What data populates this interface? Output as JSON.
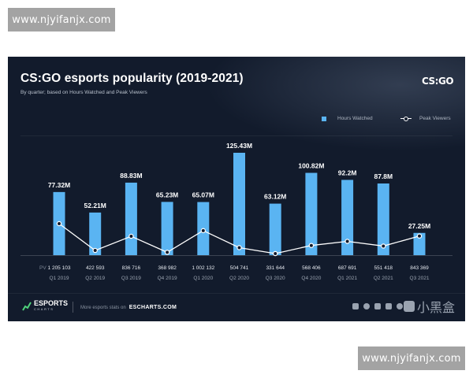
{
  "watermarks": {
    "top": "www.njyifanjx.com",
    "bottom": "www.njyifanjx.com"
  },
  "header": {
    "title": "CS:GO esports popularity (2019-2021)",
    "subtitle": "By quarter; based on Hours Watched and Peak Viewers",
    "logo": "CS:GO"
  },
  "chart_data": {
    "type": "bar",
    "title": "CS:GO esports popularity (2019-2021)",
    "subtitle": "By quarter; based on Hours Watched and Peak Viewers",
    "categories": [
      "Q1 2019",
      "Q2 2019",
      "Q3 2019",
      "Q4 2019",
      "Q1 2020",
      "Q2 2020",
      "Q3 2020",
      "Q4 2020",
      "Q1 2021",
      "Q2 2021",
      "Q3 2021"
    ],
    "series": [
      {
        "name": "Hours Watched",
        "kind": "bar",
        "values": [
          77.32,
          52.21,
          88.83,
          65.23,
          65.07,
          125.43,
          63.12,
          100.82,
          92.2,
          87.8,
          27.25
        ],
        "labels": [
          "77.32M",
          "52.21M",
          "88.83M",
          "65.23M",
          "65.07M",
          "125.43M",
          "63.12M",
          "100.82M",
          "92.2M",
          "87.8M",
          "27.25M"
        ],
        "color": "#5ab4f2"
      },
      {
        "name": "Peak Viewers",
        "kind": "line",
        "values": [
          1205103,
          422593,
          836716,
          368982,
          1002132,
          504741,
          331644,
          568406,
          687691,
          551418,
          843369
        ],
        "labels": [
          "1 205 103",
          "422 593",
          "836 716",
          "368 982",
          "1 002 132",
          "504 741",
          "331 644",
          "568 406",
          "687 691",
          "551 418",
          "843 369"
        ],
        "color": "#ffffff"
      }
    ],
    "row_label": "PV",
    "grid": false,
    "legend": "top-right"
  },
  "footer": {
    "brand": "ESPORTS",
    "brand_sub": "CHARTS",
    "stats_text": "More esports stats on",
    "stats_site": "ESCHARTS.COM",
    "social_icons": [
      "twitter-icon",
      "facebook-icon",
      "instagram-icon",
      "email-icon",
      "link-icon"
    ],
    "cn_brand": "小黑盒"
  }
}
